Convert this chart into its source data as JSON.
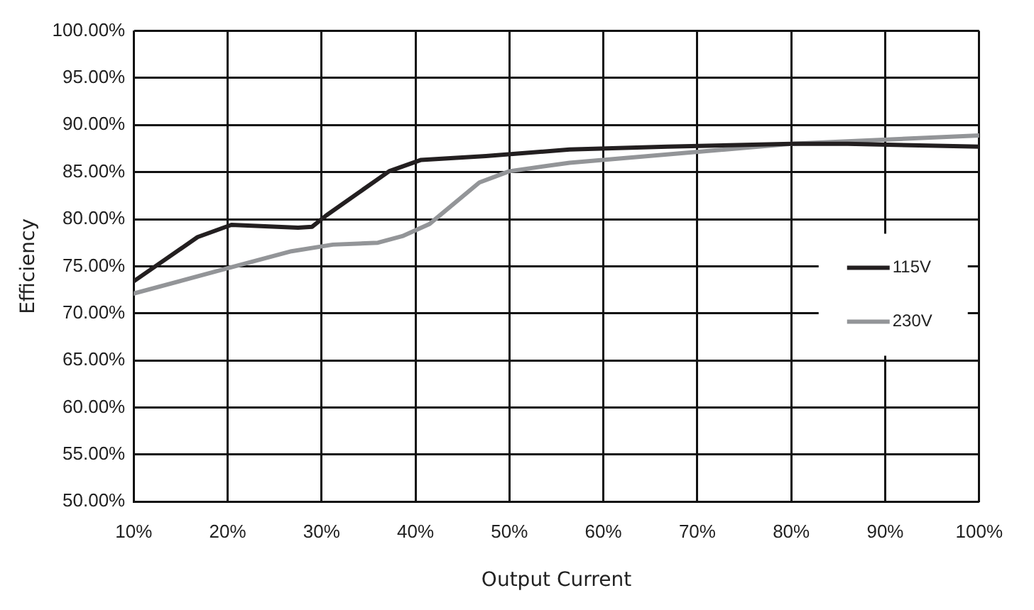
{
  "chart_data": {
    "type": "line",
    "xlabel": "Output Current",
    "ylabel": "Efficiency",
    "series": [
      {
        "name": "115V",
        "color": "#231f20",
        "x": [
          10,
          16.8,
          20.4,
          27.5,
          29,
          30.5,
          37.2,
          40.6,
          47.5,
          56.4,
          66.8,
          80,
          86,
          100
        ],
        "values": [
          73.4,
          78.1,
          79.4,
          79.1,
          79.2,
          80.4,
          85.1,
          86.3,
          86.7,
          87.4,
          87.7,
          88.0,
          88.0,
          87.7
        ]
      },
      {
        "name": "230V",
        "color": "#939598",
        "x": [
          10,
          19.3,
          26.8,
          31.2,
          36,
          38.6,
          41.5,
          46.8,
          50,
          56.4,
          80,
          100
        ],
        "values": [
          72.1,
          74.6,
          76.6,
          77.3,
          77.5,
          78.2,
          79.5,
          83.9,
          85.1,
          86,
          88,
          88.9
        ]
      }
    ],
    "xlim": [
      10,
      100
    ],
    "xticks": [
      {
        "value": 10,
        "label": "10%"
      },
      {
        "value": 20,
        "label": "20%"
      },
      {
        "value": 30,
        "label": "30%"
      },
      {
        "value": 40,
        "label": "40%"
      },
      {
        "value": 50,
        "label": "50%"
      },
      {
        "value": 60,
        "label": "60%"
      },
      {
        "value": 70,
        "label": "70%"
      },
      {
        "value": 80,
        "label": "80%"
      },
      {
        "value": 90,
        "label": "90%"
      },
      {
        "value": 100,
        "label": "100%"
      }
    ],
    "ylim": [
      50,
      100
    ],
    "yticks": [
      {
        "value": 50,
        "label": "50.00%"
      },
      {
        "value": 55,
        "label": "55.00%"
      },
      {
        "value": 60,
        "label": "60.00%"
      },
      {
        "value": 65,
        "label": "65.00%"
      },
      {
        "value": 70,
        "label": "70.00%"
      },
      {
        "value": 75,
        "label": "75.00%"
      },
      {
        "value": 80,
        "label": "80.00%"
      },
      {
        "value": 85,
        "label": "85.00%"
      },
      {
        "value": 90,
        "label": "90.00%"
      },
      {
        "value": 95,
        "label": "95.00%"
      },
      {
        "value": 100,
        "label": "100.00%"
      }
    ],
    "grid": true,
    "legend": "right",
    "marker": "none",
    "line_style": "solid"
  }
}
